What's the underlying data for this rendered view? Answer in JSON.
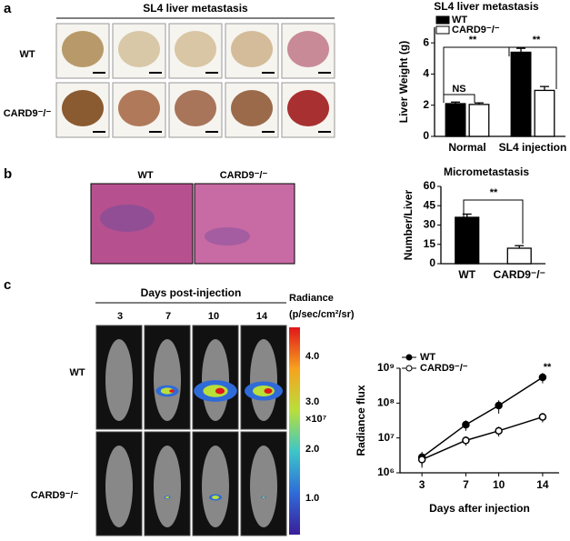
{
  "panel_labels": [
    "a",
    "b",
    "c"
  ],
  "panel_a": {
    "title": "SL4 liver metastasis",
    "row_labels": [
      "WT",
      "CARD9⁻/⁻"
    ]
  },
  "panel_b": {
    "column_labels": [
      "WT",
      "CARD9⁻/⁻"
    ]
  },
  "panel_c": {
    "header": "Days post-injection",
    "days": [
      "3",
      "7",
      "10",
      "14"
    ],
    "row_labels": [
      "WT",
      "CARD9⁻/⁻"
    ],
    "colorbar_title": [
      "Radiance",
      "(p/sec/cm²/sr)"
    ],
    "colorbar_ticks": [
      "4.0",
      "3.0",
      "2.0",
      "1.0"
    ],
    "colorbar_unit": "×10⁷"
  },
  "chart_data": [
    {
      "type": "bar",
      "title": "SL4 liver metastasis",
      "ylabel": "Liver Weight (g)",
      "categories": [
        "Normal",
        "SL4 injection"
      ],
      "series": [
        {
          "name": "WT",
          "color": "#000000",
          "values": [
            2.1,
            5.4
          ],
          "errors": [
            0.1,
            0.25
          ]
        },
        {
          "name": "CARD9⁻/⁻",
          "color": "#ffffff",
          "values": [
            2.05,
            2.95
          ],
          "errors": [
            0.1,
            0.25
          ]
        }
      ],
      "ylim": [
        0,
        7
      ],
      "yticks": [
        0,
        2,
        4,
        6
      ],
      "legend": "top-left",
      "annotations": [
        "NS",
        "**",
        "**"
      ]
    },
    {
      "type": "bar",
      "title": "Micrometastasis",
      "ylabel": "Number/Liver",
      "categories": [
        "WT",
        "CARD9⁻/⁻"
      ],
      "series": [
        {
          "name": null,
          "color": "#000000",
          "values": [
            36,
            12
          ],
          "errors": [
            2.5,
            2
          ]
        }
      ],
      "colors": [
        "#000000",
        "#ffffff"
      ],
      "ylim": [
        0,
        60
      ],
      "yticks": [
        0,
        15,
        30,
        45,
        60
      ],
      "annotations": [
        "**"
      ]
    },
    {
      "type": "line",
      "xlabel": "Days after injection",
      "ylabel": "Radiance flux",
      "x": [
        3,
        7,
        10,
        14
      ],
      "xlim": [
        1,
        15.5
      ],
      "xticks": [
        3,
        7,
        10,
        14
      ],
      "log_y": true,
      "series": [
        {
          "name": "WT",
          "color": "#000000",
          "marker": "filled",
          "values": [
            2800000,
            24000000,
            85000000,
            550000000
          ],
          "errors": [
            1200000,
            8000000,
            35000000,
            180000000
          ]
        },
        {
          "name": "CARD9⁻/⁻",
          "color": "#000000",
          "marker": "open",
          "values": [
            2400000,
            8500000,
            16000000,
            40000000
          ],
          "errors": [
            1000000,
            2500000,
            5000000,
            12000000
          ]
        }
      ],
      "ylim": [
        1000000,
        1000000000
      ],
      "yticks": [
        {
          "value": 1000000,
          "label": "10⁶"
        },
        {
          "value": 10000000,
          "label": "10⁷"
        },
        {
          "value": 100000000,
          "label": "10⁸"
        },
        {
          "value": 1000000000,
          "label": "10⁹"
        }
      ],
      "legend": "top-left",
      "annotations": [
        "**"
      ]
    }
  ]
}
